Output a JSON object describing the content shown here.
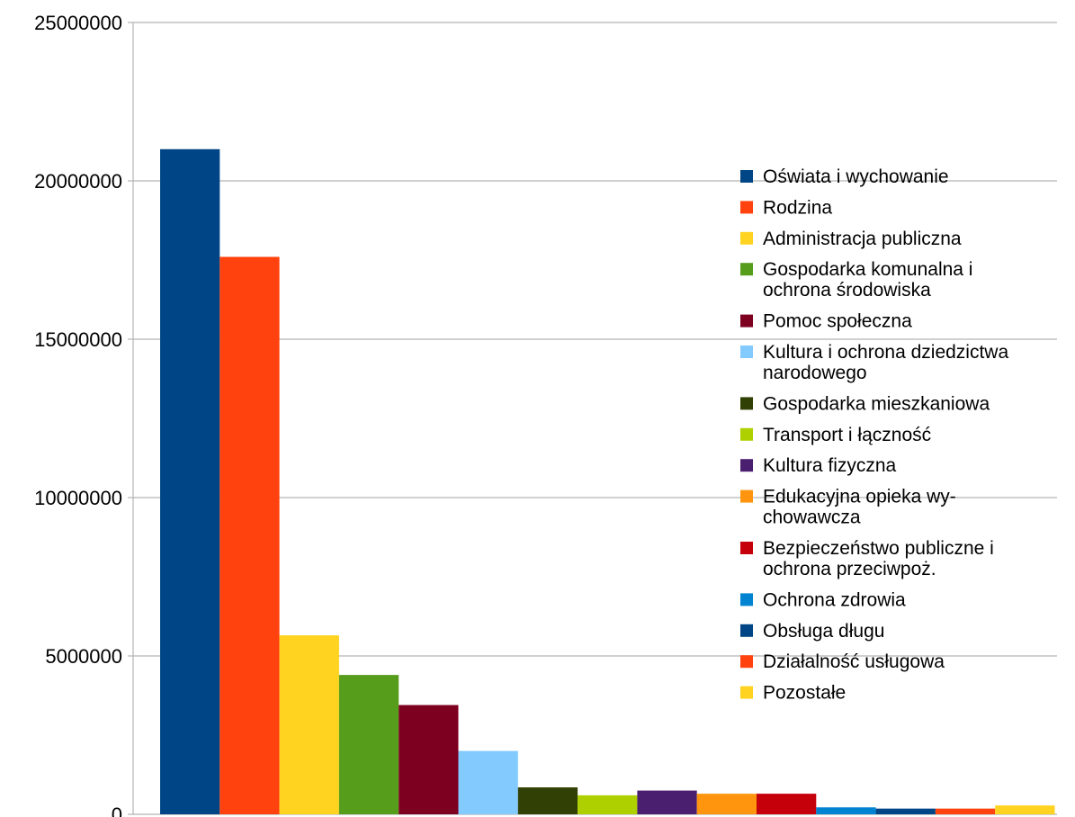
{
  "chart_data": {
    "type": "bar",
    "title": "",
    "xlabel": "",
    "ylabel": "",
    "ylim": [
      0,
      25000000
    ],
    "yticks": [
      0,
      5000000,
      10000000,
      15000000,
      20000000,
      25000000
    ],
    "ytick_labels": [
      "0",
      "5000000",
      "10000000",
      "15000000",
      "20000000",
      "25000000"
    ],
    "grid": true,
    "legend_position": "right",
    "series": [
      {
        "name": "Oświata i wychowanie",
        "value": 21000000,
        "color": "#004586"
      },
      {
        "name": "Rodzina",
        "value": 17600000,
        "color": "#ff420e"
      },
      {
        "name": "Administracja publiczna",
        "value": 5650000,
        "color": "#ffd320"
      },
      {
        "name": "Gospodarka komunalna i ochrona środowiska",
        "legend_lines": [
          "Gospodarka komunalna i",
          "ochrona środowiska"
        ],
        "value": 4400000,
        "color": "#579d1c"
      },
      {
        "name": "Pomoc społeczna",
        "value": 3450000,
        "color": "#7e0021"
      },
      {
        "name": "Kultura i ochrona dziedzictwa narodowego",
        "legend_lines": [
          "Kultura i ochrona dziedzictwa",
          "narodowego"
        ],
        "value": 2000000,
        "color": "#83caff"
      },
      {
        "name": "Gospodarka mieszkaniowa",
        "value": 850000,
        "color": "#314004"
      },
      {
        "name": "Transport i łączność",
        "value": 600000,
        "color": "#aecf00"
      },
      {
        "name": "Kultura fizyczna",
        "value": 750000,
        "color": "#4b1f6f"
      },
      {
        "name": "Edukacyjna opieka wychowawcza",
        "legend_lines": [
          "Edukacyjna opieka wy-",
          "chowawcza"
        ],
        "value": 650000,
        "color": "#ff950e"
      },
      {
        "name": "Bezpieczeństwo publiczne i ochrona przeciwpoż.",
        "legend_lines": [
          "Bezpieczeństwo publiczne i",
          "ochrona przeciwpoż."
        ],
        "value": 650000,
        "color": "#c5000b"
      },
      {
        "name": "Ochrona zdrowia",
        "value": 220000,
        "color": "#0084d1"
      },
      {
        "name": "Obsługa długu",
        "value": 180000,
        "color": "#004586"
      },
      {
        "name": "Działalność usługowa",
        "value": 180000,
        "color": "#ff420e"
      },
      {
        "name": "Pozostałe",
        "value": 280000,
        "color": "#ffd320"
      }
    ]
  },
  "colors": {
    "grid": "#b3b3b3",
    "axis": "#b3b3b3",
    "text": "#000000"
  }
}
